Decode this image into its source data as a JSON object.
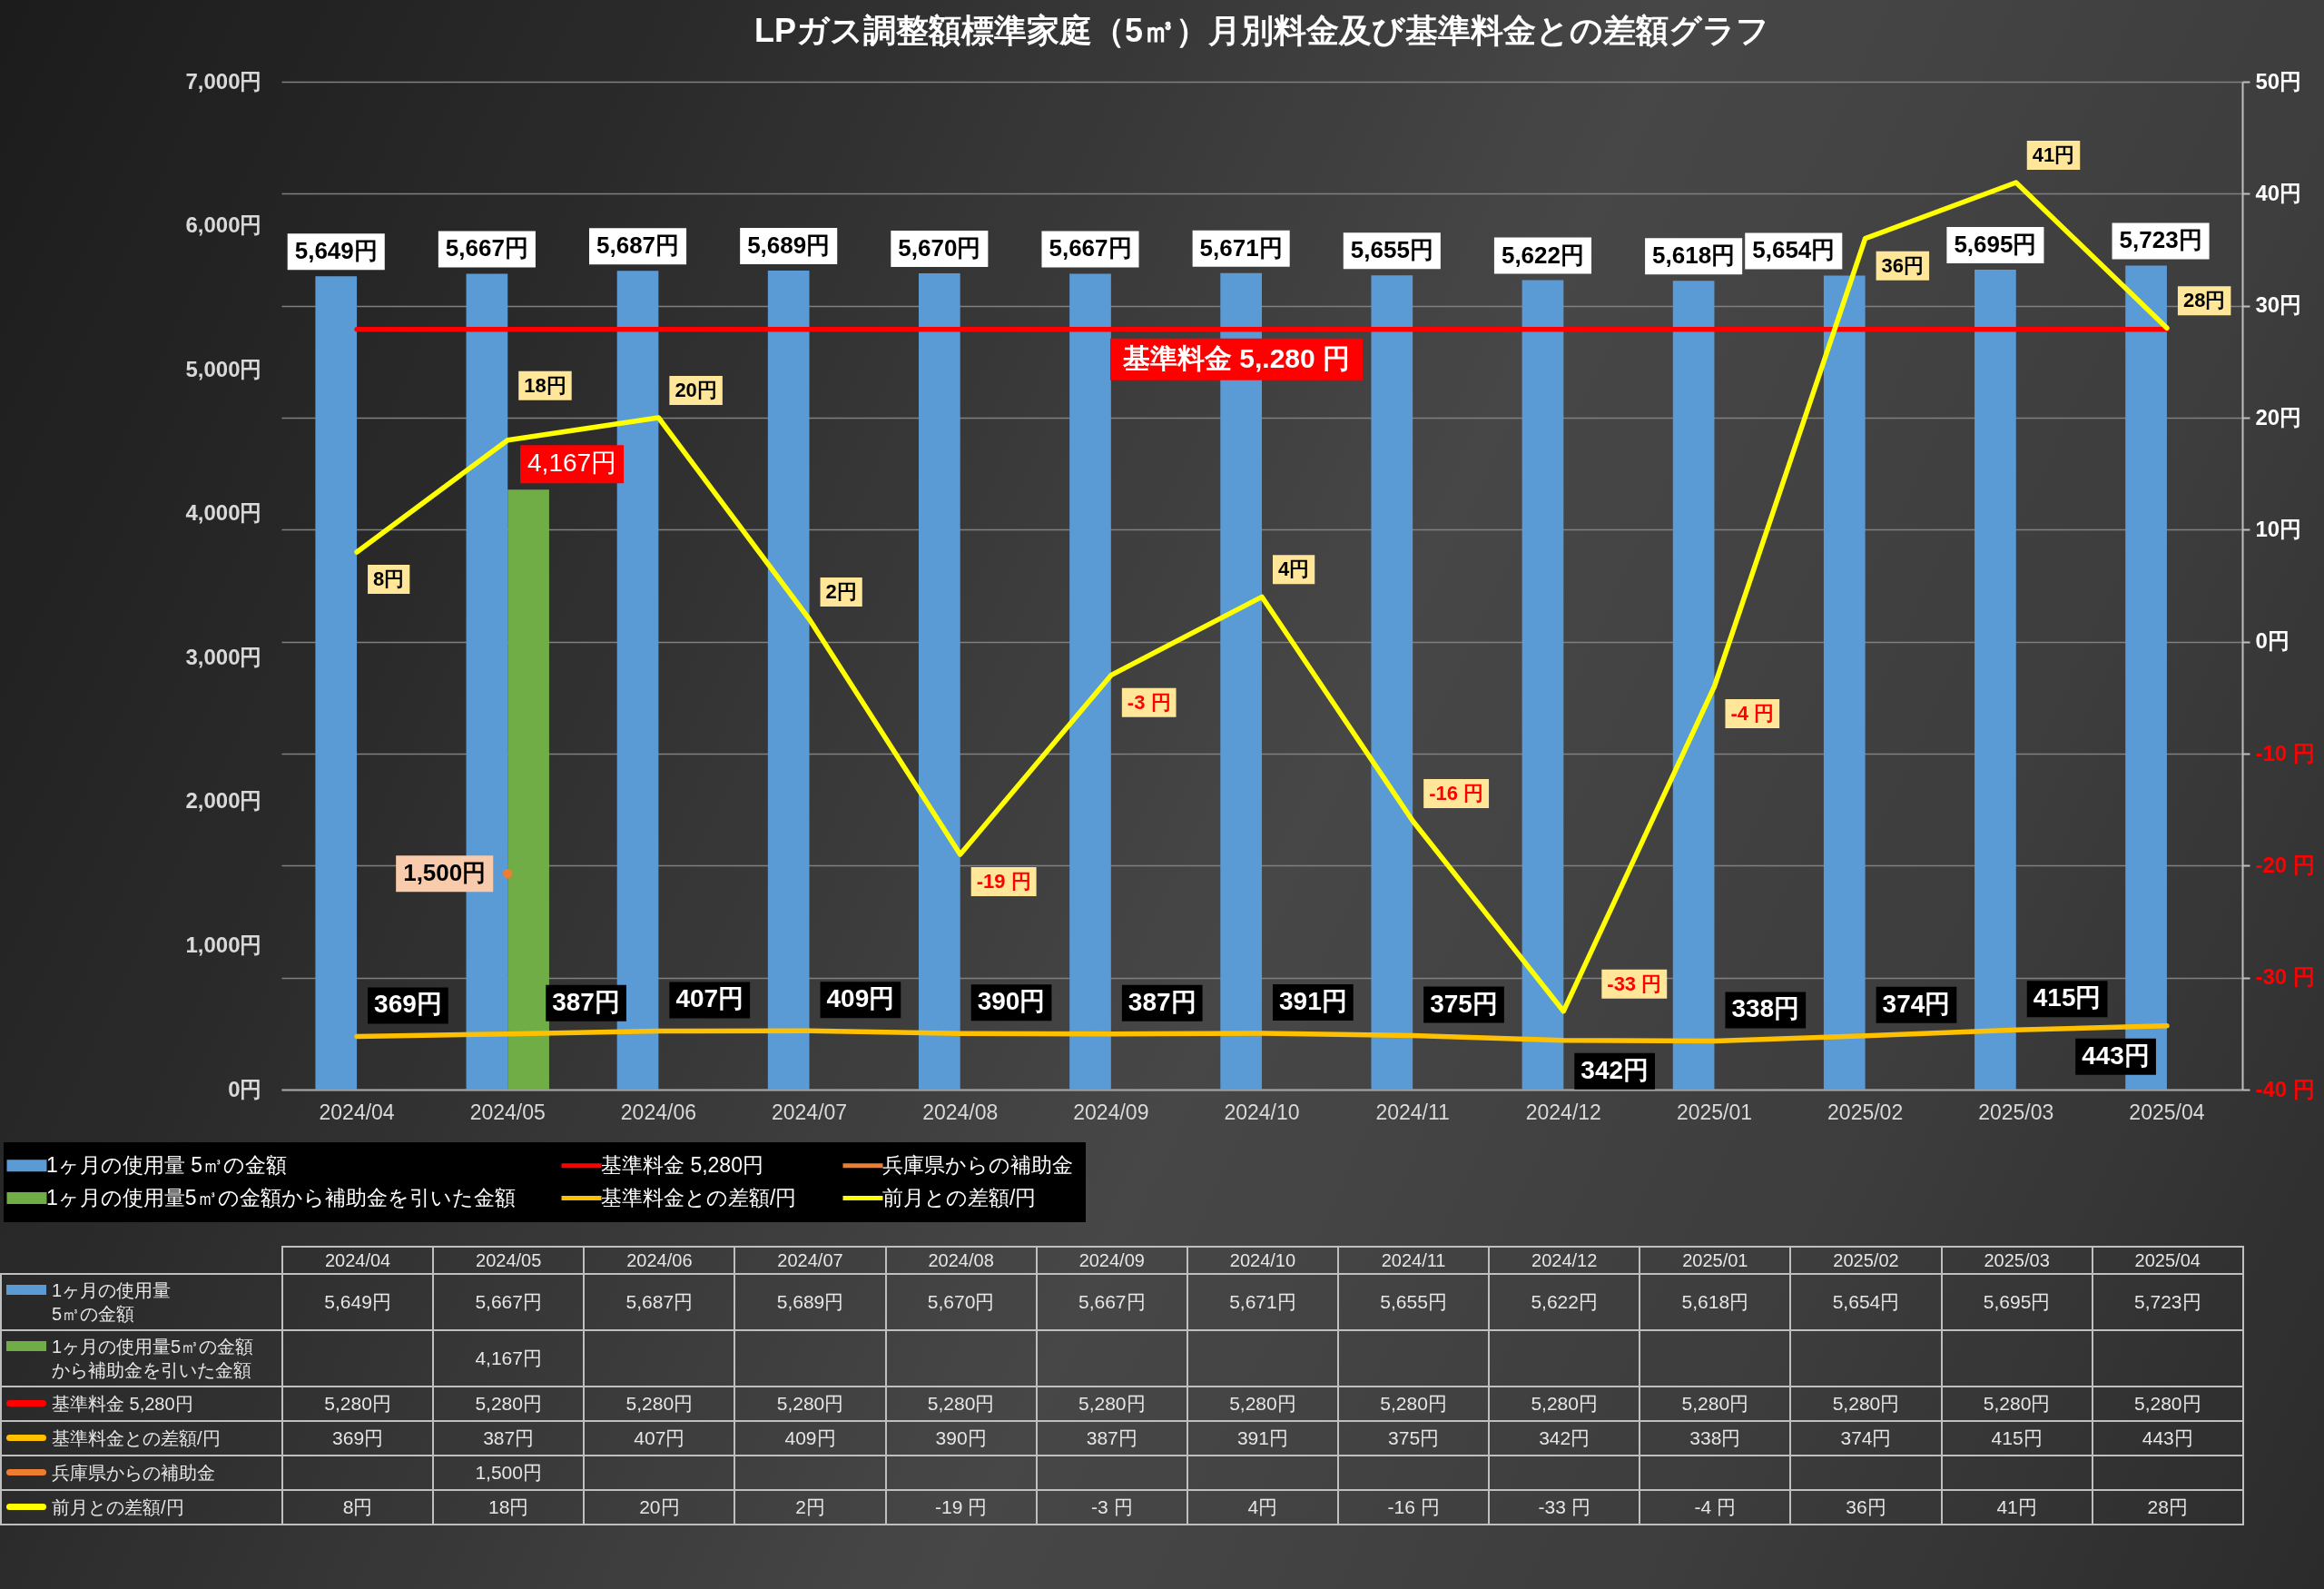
{
  "chart_data": {
    "type": "bar",
    "title": "LPガス調整額標準家庭（5㎥）月別料金及び基準料金との差額グラフ",
    "categories": [
      "2024/04",
      "2024/05",
      "2024/06",
      "2024/07",
      "2024/08",
      "2024/09",
      "2024/10",
      "2024/11",
      "2024/12",
      "2025/01",
      "2025/02",
      "2025/03",
      "2025/04"
    ],
    "series": [
      {
        "name": "1ヶ月の使用量 5㎥の金額",
        "color": "#5b9bd5",
        "values": [
          5649,
          5667,
          5687,
          5689,
          5670,
          5667,
          5671,
          5655,
          5622,
          5618,
          5654,
          5695,
          5723
        ],
        "value_labels": [
          "5,649円",
          "5,667円",
          "5,687円",
          "5,689円",
          "5,670円",
          "5,667円",
          "5,671円",
          "5,655円",
          "5,622円",
          "5,618円",
          "5,654円",
          "5,695円",
          "5,723円"
        ]
      },
      {
        "name": "1ヶ月の使用量5㎥の金額から補助金を引いた金額",
        "color": "#70ad47",
        "values": [
          null,
          4167,
          null,
          null,
          null,
          null,
          null,
          null,
          null,
          null,
          null,
          null,
          null
        ],
        "value_labels": [
          null,
          "4,167円",
          null,
          null,
          null,
          null,
          null,
          null,
          null,
          null,
          null,
          null,
          null
        ]
      },
      {
        "name": "基準料金 5,280円",
        "type": "line",
        "color": "#ff0000",
        "values": [
          5280,
          5280,
          5280,
          5280,
          5280,
          5280,
          5280,
          5280,
          5280,
          5280,
          5280,
          5280,
          5280
        ],
        "value_labels": [
          "5,280円",
          "5,280円",
          "5,280円",
          "5,280円",
          "5,280円",
          "5,280円",
          "5,280円",
          "5,280円",
          "5,280円",
          "5,280円",
          "5,280円",
          "5,280円",
          "5,280円"
        ]
      },
      {
        "name": "基準料金との差額/円",
        "type": "line",
        "color": "#ffc000",
        "values": [
          369,
          387,
          407,
          409,
          390,
          387,
          391,
          375,
          342,
          338,
          374,
          415,
          443
        ],
        "value_labels": [
          "369円",
          "387円",
          "407円",
          "409円",
          "390円",
          "387円",
          "391円",
          "375円",
          "342円",
          "338円",
          "374円",
          "415円",
          "443円"
        ]
      },
      {
        "name": "兵庫県からの補助金",
        "type": "line",
        "color": "#ed7d31",
        "marker": "circle",
        "values": [
          null,
          1500,
          null,
          null,
          null,
          null,
          null,
          null,
          null,
          null,
          null,
          null,
          null
        ],
        "value_labels": [
          null,
          "1,500円",
          null,
          null,
          null,
          null,
          null,
          null,
          null,
          null,
          null,
          null,
          null
        ]
      },
      {
        "name": "前月との差額/円",
        "type": "line",
        "color": "#ffff00",
        "axis": "y2",
        "values": [
          8,
          18,
          20,
          2,
          -19,
          -3,
          4,
          -16,
          -33,
          -4,
          36,
          41,
          28
        ],
        "value_labels": [
          "8円",
          "18円",
          "20円",
          "2円",
          "-19 円",
          "-3 円",
          "4円",
          "-16 円",
          "-33 円",
          "-4 円",
          "36円",
          "41円",
          "28円"
        ]
      }
    ],
    "ylim": [
      0,
      7000
    ],
    "yticks": [
      {
        "value": 0,
        "label": "0円"
      },
      {
        "value": 1000,
        "label": "1,000円"
      },
      {
        "value": 2000,
        "label": "2,000円"
      },
      {
        "value": 3000,
        "label": "3,000円"
      },
      {
        "value": 4000,
        "label": "4,000円"
      },
      {
        "value": 5000,
        "label": "5,000円"
      },
      {
        "value": 6000,
        "label": "6,000円"
      },
      {
        "value": 7000,
        "label": "7,000円"
      }
    ],
    "y2lim": [
      -40,
      50
    ],
    "y2ticks": [
      {
        "value": -40,
        "label": "-40 円"
      },
      {
        "value": -30,
        "label": "-30 円"
      },
      {
        "value": -20,
        "label": "-20 円"
      },
      {
        "value": -10,
        "label": "-10 円"
      },
      {
        "value": 0,
        "label": "0円"
      },
      {
        "value": 10,
        "label": "10円"
      },
      {
        "value": 20,
        "label": "20円"
      },
      {
        "value": 30,
        "label": "30円"
      },
      {
        "value": 40,
        "label": "40円"
      },
      {
        "value": 50,
        "label": "50円"
      }
    ],
    "grid": "y2",
    "legend": "bottom left",
    "annotations": [
      {
        "text": "基準料金 5,.280 円",
        "x": "2024/10",
        "y": 5280
      }
    ]
  }
}
